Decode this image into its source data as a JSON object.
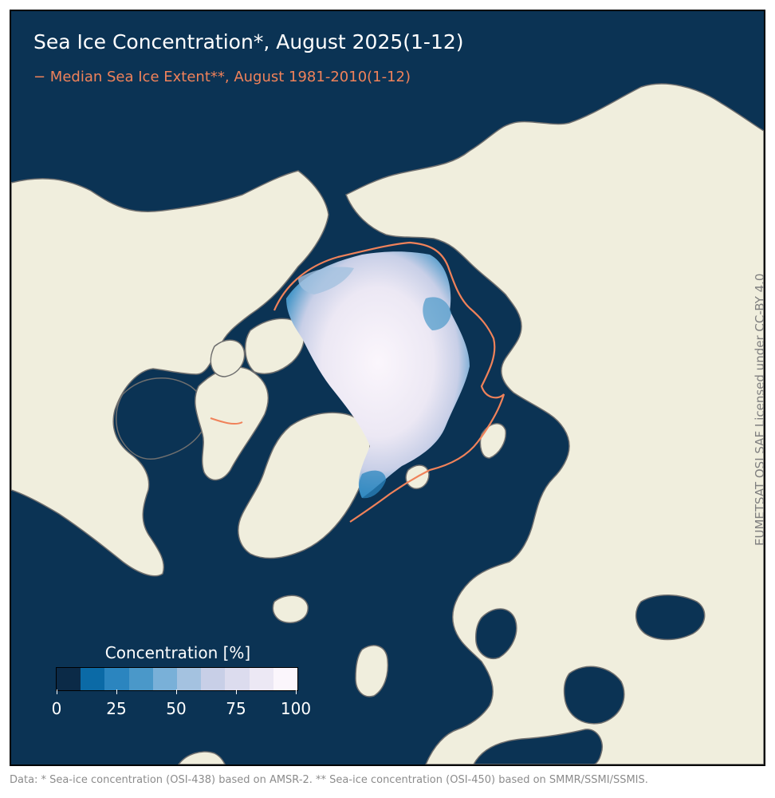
{
  "title": "Sea Ice Concentration*, August 2025(1-12)",
  "subtitle": "− Median Sea Ice Extent**, August 1981-2010(1-12)",
  "credit": "EUMETSAT OSI SAF Licensed under CC-BY 4.0",
  "colorbar": {
    "label": "Concentration [%]",
    "ticks": [
      "0",
      "25",
      "50",
      "75",
      "100"
    ],
    "colors": [
      "#0b2a47",
      "#0b6aa6",
      "#2b85bf",
      "#4a98c9",
      "#79b0d8",
      "#a4c2e0",
      "#c8cfe7",
      "#dcdcee",
      "#ece8f4",
      "#fbf6fc"
    ]
  },
  "footer": "Data: * Sea-ice concentration (OSI-438) based on AMSR-2. ** Sea-ice concentration (OSI-450) based on SMMR/SSMI/SSMIS.",
  "colors": {
    "ocean": "#0b3354",
    "land": "#f0eedd",
    "coastline": "#6f6f6f",
    "median_extent": "#f0825a",
    "ice_high": "#fbf6fc"
  }
}
